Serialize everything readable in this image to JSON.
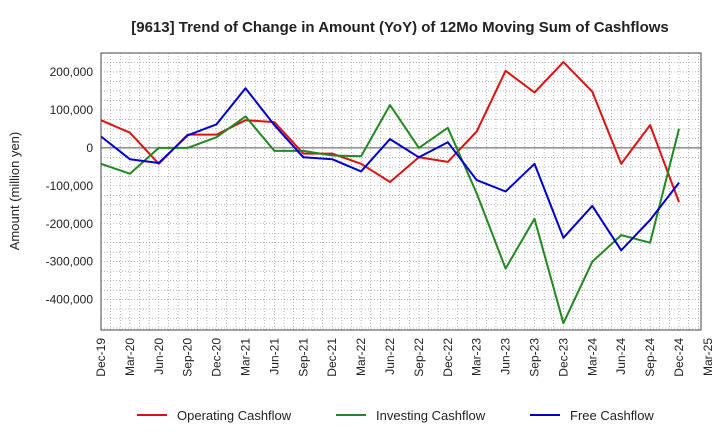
{
  "chart_data": {
    "type": "line",
    "title": "[9613]  Trend of Change in Amount (YoY) of 12Mo Moving Sum of Cashflows",
    "xlabel": "",
    "ylabel": "Amount (million yen)",
    "ylim": [
      -480000,
      250000
    ],
    "yticks": [
      200000,
      100000,
      0,
      -100000,
      -200000,
      -300000,
      -400000
    ],
    "ytick_labels": [
      "200,000",
      "100,000",
      "0",
      "-100,000",
      "-200,000",
      "-300,000",
      "-400,000"
    ],
    "categories": [
      "Dec-19",
      "Mar-20",
      "Jun-20",
      "Sep-20",
      "Dec-20",
      "Mar-21",
      "Jun-21",
      "Sep-21",
      "Dec-21",
      "Mar-22",
      "Jun-22",
      "Sep-22",
      "Dec-22",
      "Mar-23",
      "Jun-23",
      "Sep-23",
      "Dec-23",
      "Mar-24",
      "Jun-24",
      "Sep-24",
      "Dec-24",
      "Mar-25"
    ],
    "grid": true,
    "legend_position": "bottom",
    "series": [
      {
        "name": "Operating Cashflow",
        "color": "#dd1111",
        "values": [
          73000,
          40000,
          -42000,
          35000,
          35000,
          73000,
          68000,
          -15000,
          -15000,
          -42000,
          -90000,
          -25000,
          -37000,
          43000,
          203000,
          146000,
          226000,
          148000,
          -42000,
          60000,
          -143000,
          null
        ]
      },
      {
        "name": "Investing Cashflow",
        "color": "#228822",
        "values": [
          -42000,
          -68000,
          0,
          0,
          28000,
          83000,
          -8000,
          -8000,
          -20000,
          -22000,
          113000,
          0,
          53000,
          -120000,
          -318000,
          -187000,
          -462000,
          -300000,
          -230000,
          -250000,
          50000,
          null
        ]
      },
      {
        "name": "Free Cashflow",
        "color": "#0000cc",
        "values": [
          30000,
          -30000,
          -40000,
          33000,
          62000,
          157000,
          60000,
          -25000,
          -30000,
          -62000,
          23000,
          -25000,
          15000,
          -85000,
          -115000,
          -42000,
          -237000,
          -153000,
          -270000,
          -190000,
          -92000,
          null
        ]
      }
    ]
  }
}
